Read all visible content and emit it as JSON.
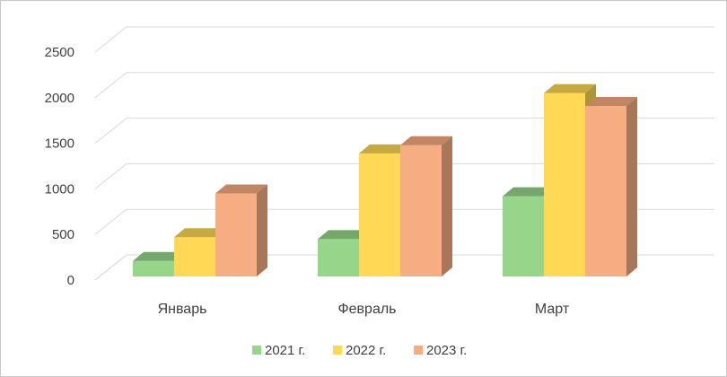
{
  "chart_data": {
    "type": "bar",
    "variant": "3d-clustered",
    "categories": [
      "Январь",
      "Февраль",
      "Март"
    ],
    "series": [
      {
        "name": "2021 г.",
        "values": [
          170,
          410,
          880
        ],
        "color": "#97d68a"
      },
      {
        "name": "2022 г.",
        "values": [
          430,
          1350,
          2010
        ],
        "color": "#ffd955"
      },
      {
        "name": "2023 г.",
        "values": [
          910,
          1440,
          1870
        ],
        "color": "#f7ad82"
      }
    ],
    "y_ticks": [
      "0",
      "500",
      "1000",
      "1500",
      "2000",
      "2500"
    ],
    "ylim": [
      0,
      2500
    ],
    "grid": true,
    "legend_position": "bottom",
    "title": "",
    "xlabel": "",
    "ylabel": ""
  }
}
